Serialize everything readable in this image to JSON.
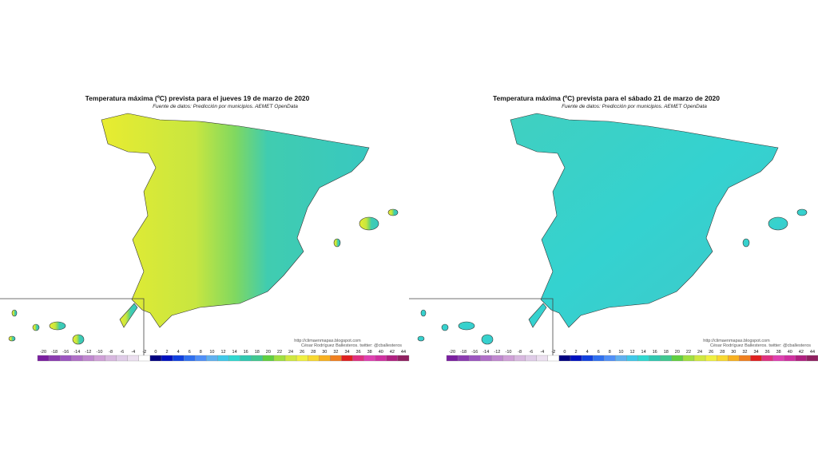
{
  "panels": [
    {
      "title": "Temperatura máxima (ºC) prevista para el jueves 19 de marzo de 2020",
      "subtitle": "Fuente de datos: Predicción por municipios. AEMET OpenData"
    },
    {
      "title": "Temperatura máxima (ºC) prevista para el sábado 21 de marzo de 2020",
      "subtitle": "Fuente de datos: Predicción por municipios. AEMET OpenData"
    }
  ],
  "credits": {
    "url": "http://climaenmapas.blogspot.com",
    "author": "César Rodríguez Ballesteros. twitter: @cballesteros"
  },
  "legend": {
    "ticks": [
      -20,
      -18,
      -16,
      -14,
      -12,
      -10,
      -8,
      -6,
      -4,
      -2,
      0,
      2,
      4,
      6,
      8,
      10,
      12,
      14,
      16,
      18,
      20,
      22,
      24,
      26,
      28,
      30,
      32,
      34,
      36,
      38,
      40,
      42,
      44
    ],
    "colors": [
      "#7a1fa0",
      "#8b3bb0",
      "#9c55c0",
      "#b070c8",
      "#c088d0",
      "#d0a0d8",
      "#d8b8e0",
      "#e0cce8",
      "#ece0f0",
      "#ffffff",
      "#000080",
      "#0010c0",
      "#1040e0",
      "#3070f0",
      "#5090f8",
      "#60b0f0",
      "#40c8e8",
      "#30d8d0",
      "#30c8b0",
      "#40c890",
      "#60d040",
      "#a0e040",
      "#d0e840",
      "#f0f040",
      "#f8d830",
      "#f8b020",
      "#f08020",
      "#e02020",
      "#e03080",
      "#e040b0",
      "#d030a0",
      "#b02080",
      "#902060"
    ]
  }
}
